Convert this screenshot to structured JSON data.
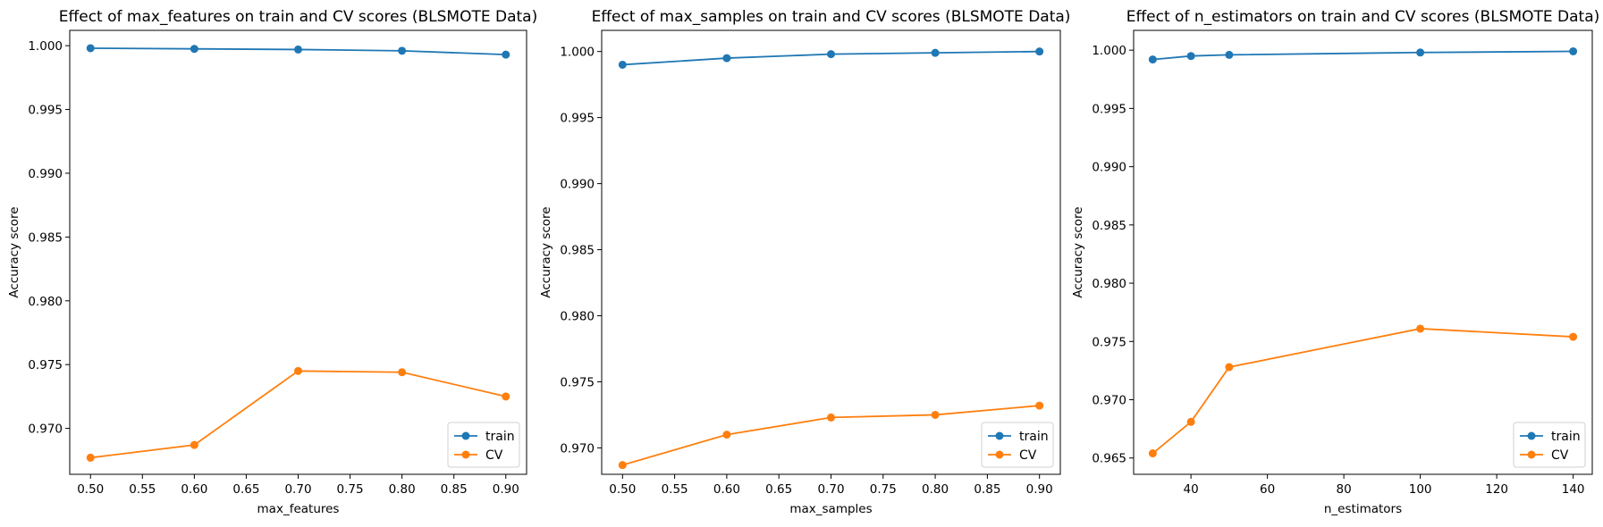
{
  "chart_data": [
    {
      "type": "line",
      "title": "Effect of max_features on train and CV scores (BLSMOTE Data)",
      "xlabel": "max_features",
      "ylabel": "Accuracy score",
      "x": [
        0.5,
        0.6,
        0.7,
        0.8,
        0.9
      ],
      "xlim": [
        0.48,
        0.92
      ],
      "ylim": [
        0.9664,
        1.0012
      ],
      "xticks": [
        0.5,
        0.55,
        0.6,
        0.65,
        0.7,
        0.75,
        0.8,
        0.85,
        0.9
      ],
      "xtick_labels": [
        "0.50",
        "0.55",
        "0.60",
        "0.65",
        "0.70",
        "0.75",
        "0.80",
        "0.85",
        "0.90"
      ],
      "yticks": [
        0.97,
        0.975,
        0.98,
        0.985,
        0.99,
        0.995,
        1.0
      ],
      "ytick_labels": [
        "0.970",
        "0.975",
        "0.980",
        "0.985",
        "0.990",
        "0.995",
        "1.000"
      ],
      "grid": false,
      "legend_position": "bottom-right",
      "series": [
        {
          "name": "train",
          "color": "#1f77b4",
          "values": [
            0.9998,
            0.99975,
            0.9997,
            0.9996,
            0.9993
          ]
        },
        {
          "name": "CV",
          "color": "#ff7f0e",
          "values": [
            0.9677,
            0.9687,
            0.9745,
            0.9744,
            0.9725
          ]
        }
      ]
    },
    {
      "type": "line",
      "title": "Effect of max_samples on train and CV scores (BLSMOTE Data)",
      "xlabel": "max_samples",
      "ylabel": "Accuracy score",
      "x": [
        0.5,
        0.6,
        0.7,
        0.8,
        0.9
      ],
      "xlim": [
        0.48,
        0.92
      ],
      "ylim": [
        0.968,
        1.0016
      ],
      "xticks": [
        0.5,
        0.55,
        0.6,
        0.65,
        0.7,
        0.75,
        0.8,
        0.85,
        0.9
      ],
      "xtick_labels": [
        "0.50",
        "0.55",
        "0.60",
        "0.65",
        "0.70",
        "0.75",
        "0.80",
        "0.85",
        "0.90"
      ],
      "yticks": [
        0.97,
        0.975,
        0.98,
        0.985,
        0.99,
        0.995,
        1.0
      ],
      "ytick_labels": [
        "0.970",
        "0.975",
        "0.980",
        "0.985",
        "0.990",
        "0.995",
        "1.000"
      ],
      "grid": false,
      "legend_position": "bottom-right",
      "series": [
        {
          "name": "train",
          "color": "#1f77b4",
          "values": [
            0.999,
            0.9995,
            0.9998,
            0.9999,
            1.0
          ]
        },
        {
          "name": "CV",
          "color": "#ff7f0e",
          "values": [
            0.9687,
            0.971,
            0.9723,
            0.9725,
            0.9732
          ]
        }
      ]
    },
    {
      "type": "line",
      "title": "Effect of n_estimators on train and CV scores (BLSMOTE Data)",
      "xlabel": "n_estimators",
      "ylabel": "Accuracy score",
      "x": [
        30,
        40,
        50,
        100,
        140
      ],
      "xlim": [
        25,
        145
      ],
      "ylim": [
        0.9636,
        1.0017
      ],
      "xticks": [
        40,
        60,
        80,
        100,
        120,
        140
      ],
      "xtick_labels": [
        "40",
        "60",
        "80",
        "100",
        "120",
        "140"
      ],
      "yticks": [
        0.965,
        0.97,
        0.975,
        0.98,
        0.985,
        0.99,
        0.995,
        1.0
      ],
      "ytick_labels": [
        "0.965",
        "0.970",
        "0.975",
        "0.980",
        "0.985",
        "0.990",
        "0.995",
        "1.000"
      ],
      "grid": false,
      "legend_position": "bottom-right",
      "series": [
        {
          "name": "train",
          "color": "#1f77b4",
          "values": [
            0.9992,
            0.9995,
            0.9996,
            0.9998,
            0.9999
          ]
        },
        {
          "name": "CV",
          "color": "#ff7f0e",
          "values": [
            0.9654,
            0.9681,
            0.9728,
            0.9761,
            0.9754
          ]
        }
      ]
    }
  ]
}
